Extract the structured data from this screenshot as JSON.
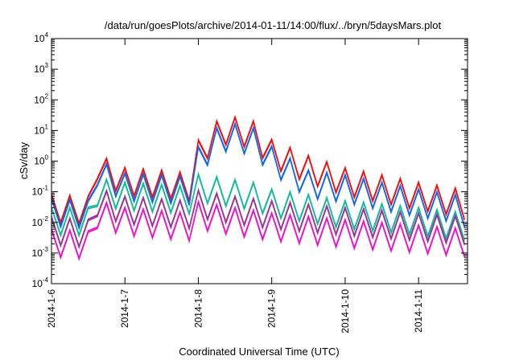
{
  "chart_data": {
    "type": "line",
    "title": "/data/run/goesPlots/archive/2014-01-11/14:00/flux/../bryn/5daysMars.plot",
    "xlabel": "Coordinated Universal Time (UTC)",
    "ylabel": "cSv/day",
    "y_scale": "log",
    "ylim": [
      0.0001,
      10000
    ],
    "xlim": [
      "2014-01-06T00:00",
      "2014-01-11T16:00"
    ],
    "grid": false,
    "legend": "none",
    "y_tick_labels": [
      {
        "base": "10",
        "exp": "-4",
        "value": 0.0001
      },
      {
        "base": "10",
        "exp": "-3",
        "value": 0.001
      },
      {
        "base": "10",
        "exp": "-2",
        "value": 0.01
      },
      {
        "base": "10",
        "exp": "-1",
        "value": 0.1
      },
      {
        "base": "10",
        "exp": "0",
        "value": 1
      },
      {
        "base": "10",
        "exp": "1",
        "value": 10
      },
      {
        "base": "10",
        "exp": "2",
        "value": 100
      },
      {
        "base": "10",
        "exp": "3",
        "value": 1000
      },
      {
        "base": "10",
        "exp": "4",
        "value": 10000
      }
    ],
    "x_tick_labels": [
      {
        "label": "2014-1-6",
        "value": "2014-01-06"
      },
      {
        "label": "2014-1-7",
        "value": "2014-01-07"
      },
      {
        "label": "2014-1-8",
        "value": "2014-01-08"
      },
      {
        "label": "2014-1-9",
        "value": "2014-01-09"
      },
      {
        "label": "2014-1-10",
        "value": "2014-01-10"
      },
      {
        "label": "2014-1-11",
        "value": "2014-01-11"
      }
    ],
    "series": [
      {
        "color": "#ee1111",
        "x": [
          "2014-01-06T00:00",
          "2014-01-06T12:00",
          "2014-01-06T13:00",
          "2014-01-06T18:00",
          "2014-01-07T00:00",
          "2014-01-07T12:00",
          "2014-01-07T21:00",
          "2014-01-07T22:00",
          "2014-01-08T06:00",
          "2014-01-08T10:00",
          "2014-01-08T18:00",
          "2014-01-09T00:00",
          "2014-01-09T12:00",
          "2014-01-10T00:00",
          "2014-01-10T12:00",
          "2014-01-11T00:00",
          "2014-01-11T12:00",
          "2014-01-11T16:00"
        ],
        "values": [
          0.08,
          0.07,
          3.0,
          1.2,
          0.6,
          0.5,
          0.4,
          3.0,
          20,
          30,
          20,
          5,
          1.5,
          0.6,
          0.35,
          0.2,
          0.13,
          0.09
        ]
      },
      {
        "color": "#1166ee",
        "x": [
          "2014-01-06T00:00",
          "2014-01-06T12:00",
          "2014-01-06T13:00",
          "2014-01-06T18:00",
          "2014-01-07T00:00",
          "2014-01-07T12:00",
          "2014-01-07T21:00",
          "2014-01-07T22:00",
          "2014-01-08T06:00",
          "2014-01-08T10:00",
          "2014-01-08T18:00",
          "2014-01-09T00:00",
          "2014-01-09T12:00",
          "2014-01-10T00:00",
          "2014-01-10T12:00",
          "2014-01-11T00:00",
          "2014-01-11T12:00",
          "2014-01-11T16:00"
        ],
        "values": [
          0.06,
          0.05,
          1.8,
          0.8,
          0.4,
          0.35,
          0.3,
          1.8,
          12,
          18,
          12,
          3,
          0.5,
          0.35,
          0.2,
          0.12,
          0.08,
          0.05
        ]
      },
      {
        "color": "#11bb99",
        "x": [
          "2014-01-06T00:00",
          "2014-01-06T12:00",
          "2014-01-06T13:00",
          "2014-01-07T00:00",
          "2014-01-07T21:00",
          "2014-01-07T22:00",
          "2014-01-08T06:00",
          "2014-01-08T18:00",
          "2014-01-09T00:00",
          "2014-01-09T12:00",
          "2014-01-10T00:00",
          "2014-01-10T12:00",
          "2014-01-11T00:00",
          "2014-01-11T16:00"
        ],
        "values": [
          0.03,
          0.03,
          0.3,
          0.2,
          0.15,
          0.4,
          0.3,
          0.2,
          0.12,
          0.08,
          0.05,
          0.04,
          0.03,
          0.02
        ]
      },
      {
        "color": "#993399",
        "x": [
          "2014-01-06T00:00",
          "2014-01-06T12:00",
          "2014-01-06T13:00",
          "2014-01-07T00:00",
          "2014-01-07T21:00",
          "2014-01-07T22:00",
          "2014-01-08T12:00",
          "2014-01-09T00:00",
          "2014-01-10T00:00",
          "2014-01-11T00:00",
          "2014-01-11T16:00"
        ],
        "values": [
          0.015,
          0.012,
          0.15,
          0.07,
          0.05,
          0.12,
          0.07,
          0.05,
          0.03,
          0.02,
          0.015
        ]
      },
      {
        "color": "#ee11cc",
        "x": [
          "2014-01-06T00:00",
          "2014-01-06T12:00",
          "2014-01-06T13:00",
          "2014-01-07T00:00",
          "2014-01-07T21:00",
          "2014-01-07T22:00",
          "2014-01-08T12:00",
          "2014-01-09T00:00",
          "2014-01-10T00:00",
          "2014-01-11T00:00",
          "2014-01-11T16:00"
        ],
        "values": [
          0.006,
          0.005,
          0.06,
          0.03,
          0.02,
          0.05,
          0.03,
          0.02,
          0.012,
          0.008,
          0.006
        ]
      }
    ]
  }
}
